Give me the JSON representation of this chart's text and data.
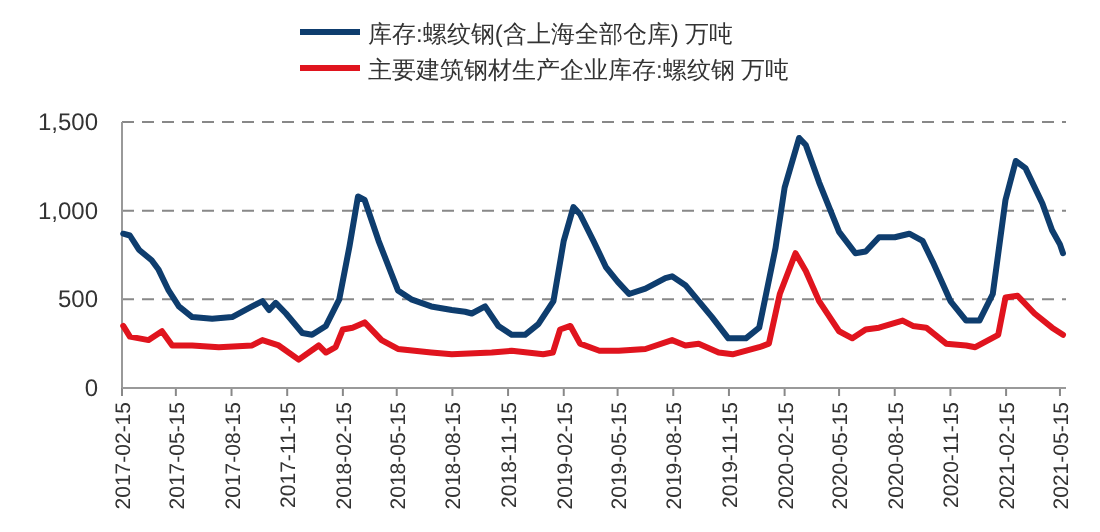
{
  "chart_data": {
    "type": "line",
    "series": [
      {
        "name": "库存:螺纹钢(含上海全部仓库) 万吨",
        "color": "#0e3d6e",
        "x": [
          "2017-02-17",
          "2017-02-28",
          "2017-03-15",
          "2017-04-05",
          "2017-04-16",
          "2017-05-03",
          "2017-05-20",
          "2017-06-11",
          "2017-07-14",
          "2017-08-16",
          "2017-09-18",
          "2017-10-05",
          "2017-10-16",
          "2017-10-27",
          "2017-11-13",
          "2017-12-10",
          "2017-12-26",
          "2018-01-18",
          "2018-02-09",
          "2018-02-26",
          "2018-03-12",
          "2018-03-23",
          "2018-04-15",
          "2018-05-17",
          "2018-06-08",
          "2018-07-11",
          "2018-08-14",
          "2018-09-05",
          "2018-09-16",
          "2018-10-08",
          "2018-10-30",
          "2018-11-21",
          "2018-12-13",
          "2019-01-04",
          "2019-01-29",
          "2019-02-15",
          "2019-03-03",
          "2019-03-14",
          "2019-04-05",
          "2019-04-26",
          "2019-05-15",
          "2019-06-03",
          "2019-06-30",
          "2019-08-02",
          "2019-08-13",
          "2019-09-04",
          "2019-09-26",
          "2019-10-18",
          "2019-11-14",
          "2019-12-13",
          "2020-01-04",
          "2020-01-31",
          "2020-02-15",
          "2020-03-10",
          "2020-03-21",
          "2020-04-12",
          "2020-05-15",
          "2020-06-11",
          "2020-06-28",
          "2020-07-20",
          "2020-08-15",
          "2020-09-08",
          "2020-09-30",
          "2020-10-17",
          "2020-11-15",
          "2020-12-11",
          "2021-01-02",
          "2021-01-24",
          "2021-02-14",
          "2021-03-03",
          "2021-03-19",
          "2021-04-16",
          "2021-05-02",
          "2021-05-15",
          "2021-05-20"
        ],
        "values": [
          870,
          860,
          780,
          720,
          670,
          550,
          460,
          400,
          390,
          400,
          460,
          490,
          440,
          480,
          420,
          310,
          300,
          350,
          500,
          800,
          1080,
          1060,
          830,
          550,
          500,
          460,
          440,
          430,
          420,
          460,
          350,
          300,
          300,
          360,
          490,
          830,
          1020,
          980,
          830,
          680,
          600,
          530,
          560,
          620,
          630,
          580,
          490,
          400,
          280,
          280,
          340,
          790,
          1130,
          1410,
          1370,
          1160,
          880,
          760,
          770,
          850,
          850,
          870,
          830,
          710,
          490,
          380,
          380,
          530,
          1060,
          1280,
          1240,
          1040,
          890,
          810,
          760
        ]
      },
      {
        "name": "主要建筑钢材生产企业库存:螺纹钢 万吨",
        "color": "#e0141e",
        "x": [
          "2017-02-17",
          "2017-02-28",
          "2017-03-31",
          "2017-04-22",
          "2017-05-09",
          "2017-06-11",
          "2017-07-25",
          "2017-09-18",
          "2017-10-05",
          "2017-11-01",
          "2017-12-04",
          "2018-01-06",
          "2018-01-18",
          "2018-02-03",
          "2018-02-15",
          "2018-03-03",
          "2018-03-23",
          "2018-04-20",
          "2018-05-17",
          "2018-07-11",
          "2018-08-14",
          "2018-10-19",
          "2018-11-21",
          "2019-01-12",
          "2019-01-28",
          "2019-02-09",
          "2019-02-26",
          "2019-03-14",
          "2019-04-15",
          "2019-05-17",
          "2019-06-30",
          "2019-08-13",
          "2019-09-04",
          "2019-09-26",
          "2019-10-29",
          "2019-11-21",
          "2020-01-04",
          "2020-01-20",
          "2020-02-07",
          "2020-03-04",
          "2020-03-21",
          "2020-04-12",
          "2020-05-15",
          "2020-06-06",
          "2020-06-28",
          "2020-07-20",
          "2020-08-28",
          "2020-09-14",
          "2020-10-06",
          "2020-11-08",
          "2020-12-11",
          "2020-12-26",
          "2021-02-02",
          "2021-02-14",
          "2021-03-06",
          "2021-04-03",
          "2021-05-02",
          "2021-05-20"
        ],
        "values": [
          350,
          290,
          270,
          320,
          240,
          240,
          230,
          240,
          270,
          240,
          160,
          240,
          200,
          230,
          330,
          340,
          370,
          270,
          220,
          200,
          190,
          200,
          210,
          190,
          200,
          330,
          350,
          250,
          210,
          210,
          220,
          270,
          240,
          250,
          200,
          190,
          230,
          250,
          530,
          760,
          660,
          490,
          320,
          280,
          330,
          340,
          380,
          350,
          340,
          250,
          240,
          230,
          300,
          510,
          520,
          420,
          340,
          300
        ]
      }
    ],
    "xlim": [
      "2017-02-15",
      "2021-05-25"
    ],
    "xticks": [
      "2017-02-15",
      "2017-05-15",
      "2017-08-15",
      "2017-11-15",
      "2018-02-15",
      "2018-05-15",
      "2018-08-15",
      "2018-11-15",
      "2019-02-15",
      "2019-05-15",
      "2019-08-15",
      "2019-11-15",
      "2020-02-15",
      "2020-05-15",
      "2020-08-15",
      "2020-11-15",
      "2021-02-15",
      "2021-05-15"
    ],
    "ylim": [
      0,
      1500
    ],
    "yticks": [
      0,
      500,
      {
        "value": 1000,
        "label": "1,000"
      },
      {
        "value": 1500,
        "label": "1,500"
      }
    ],
    "grid": "y",
    "legend": "top"
  }
}
